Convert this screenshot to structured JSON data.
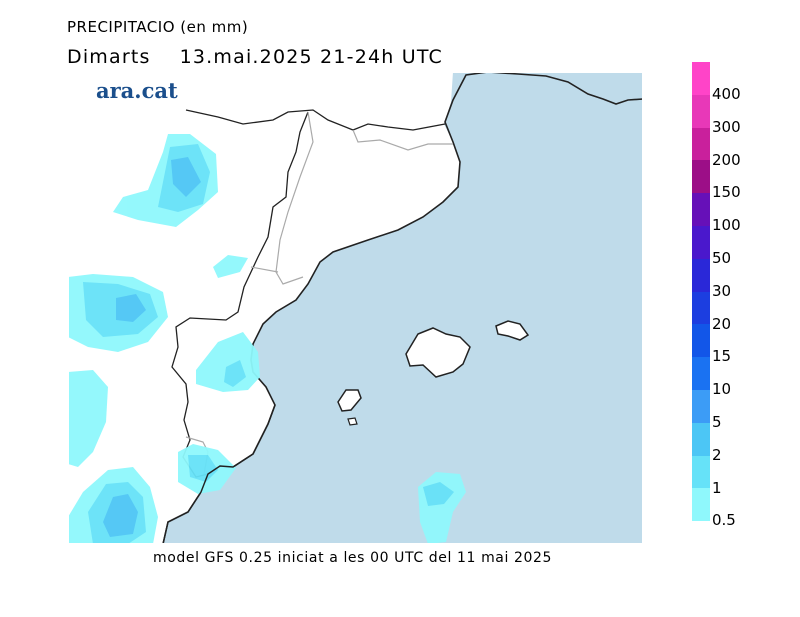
{
  "header": {
    "title": "PRECIPITACIO (en mm)",
    "subtitle": "Dimarts    13.mai.2025 21-24h UTC"
  },
  "brand": {
    "logo_text": "ara.cat"
  },
  "footer": {
    "text": "model GFS 0.25 iniciat a les 00 UTC del 11 mai 2025"
  },
  "colors": {
    "sea": "#bfdbea",
    "land": "#ffffff",
    "coast": "#222222",
    "border": "#aaaaaa"
  },
  "legend": {
    "labels": [
      "400",
      "300",
      "200",
      "150",
      "100",
      "50",
      "30",
      "20",
      "15",
      "10",
      "5",
      "2",
      "1",
      "0.5"
    ],
    "colors": [
      "#ff44c8",
      "#e838b8",
      "#c9209c",
      "#9c0e87",
      "#6610b8",
      "#4a18cc",
      "#2a28d8",
      "#1c3ee0",
      "#1256e8",
      "#1a72f2",
      "#3c9cf6",
      "#4cc6f5",
      "#66e2f8",
      "#8ff8fc"
    ]
  }
}
